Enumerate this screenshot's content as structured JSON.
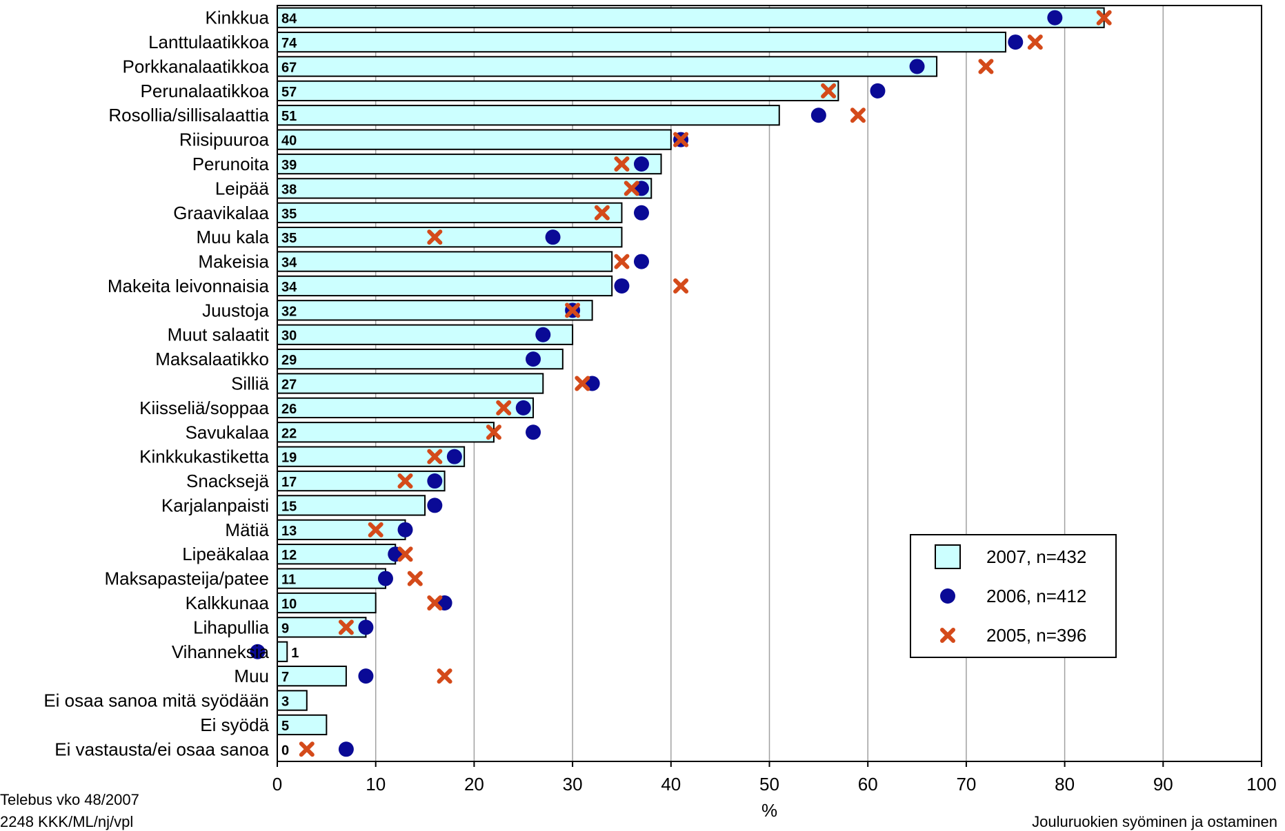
{
  "chart_data": {
    "type": "bar",
    "orientation": "horizontal",
    "categories": [
      "Kinkkua",
      "Lanttulaatikkoa",
      "Porkkanalaatikkoa",
      "Perunalaatikkoa",
      "Rosollia/sillisalaattia",
      "Riisipuuroa",
      "Perunoita",
      "Leipää",
      "Graavikalaa",
      "Muu kala",
      "Makeisia",
      "Makeita leivonnaisia",
      "Juustoja",
      "Muut salaatit",
      "Maksalaatikko",
      "Silliä",
      "Kiisseliä/soppaa",
      "Savukalaa",
      "Kinkkukastiketta",
      "Snacksejä",
      "Karjalanpaisti",
      "Mätiä",
      "Lipeäkalaa",
      "Maksapasteija/patee",
      "Kalkkunaa",
      "Lihapullia",
      "Vihanneksia",
      "Muu",
      "Ei osaa sanoa mitä syödään",
      "Ei syödä",
      "Ei vastausta/ei osaa sanoa"
    ],
    "series": [
      {
        "name": "2007, n=432",
        "marker": "bar",
        "color": "#ccffff",
        "values": [
          84,
          74,
          67,
          57,
          51,
          40,
          39,
          38,
          35,
          35,
          34,
          34,
          32,
          30,
          29,
          27,
          26,
          22,
          19,
          17,
          15,
          13,
          12,
          11,
          10,
          9,
          1,
          7,
          3,
          5,
          0
        ]
      },
      {
        "name": "2006, n=412",
        "marker": "circle",
        "color": "#0a0a96",
        "values": [
          79,
          75,
          65,
          61,
          55,
          41,
          37,
          37,
          37,
          28,
          37,
          35,
          30,
          27,
          26,
          32,
          25,
          26,
          18,
          16,
          16,
          13,
          12,
          11,
          17,
          9,
          -2,
          9,
          null,
          null,
          7
        ]
      },
      {
        "name": "2005, n=396",
        "marker": "x",
        "color": "#d44a1a",
        "values": [
          84,
          77,
          72,
          56,
          59,
          41,
          35,
          36,
          33,
          16,
          35,
          41,
          30,
          null,
          null,
          31,
          23,
          22,
          16,
          13,
          null,
          10,
          13,
          14,
          16,
          7,
          null,
          17,
          null,
          null,
          3
        ]
      }
    ],
    "xlabel": "%",
    "xlim": [
      0,
      100
    ],
    "xticks": [
      0,
      10,
      20,
      30,
      40,
      50,
      60,
      70,
      80,
      90,
      100
    ],
    "grid": true,
    "legend_position": "right-middle"
  },
  "footer": {
    "source_line1": "Telebus vko 48/2007",
    "source_line2": "2248 KKK/ML/nj/vpl",
    "title": "Jouluruokien syöminen ja ostaminen"
  }
}
